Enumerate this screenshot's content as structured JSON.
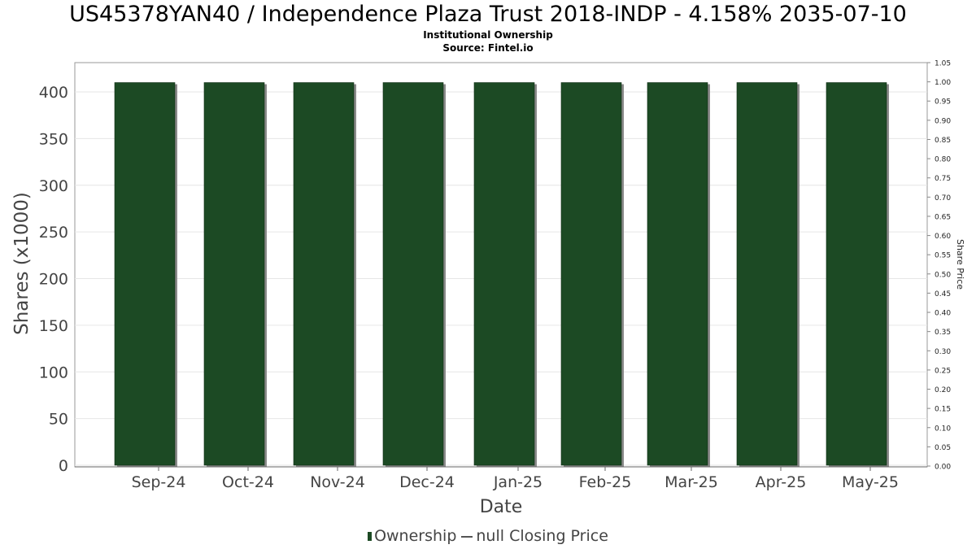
{
  "title": "US45378YAN40 / Independence Plaza Trust 2018-INDP - 4.158% 2035-07-10",
  "subtitle": "Institutional Ownership",
  "source": "Source: Fintel.io",
  "legend": {
    "ownership_label": "Ownership",
    "price_label": "null Closing Price"
  },
  "colors": {
    "bar_fill": "#1c4a24",
    "bar_shadow": "#8a8a8a",
    "grid": "#e6e6e6",
    "axis": "#999999"
  },
  "chart_data": {
    "type": "bar",
    "categories": [
      "Sep-24",
      "Oct-24",
      "Nov-24",
      "Dec-24",
      "Jan-25",
      "Feb-25",
      "Mar-25",
      "Apr-25",
      "May-25"
    ],
    "series": [
      {
        "name": "Ownership",
        "values": [
          410,
          410,
          410,
          410,
          410,
          410,
          410,
          410,
          410
        ]
      }
    ],
    "xlabel": "Date",
    "ylabel": "Shares (x1000)",
    "y2label": "Share Price",
    "ylim": [
      0,
      430
    ],
    "y2lim": [
      0,
      1.05
    ],
    "yticks": [
      0,
      50,
      100,
      150,
      200,
      250,
      300,
      350,
      400
    ],
    "y2ticks": [
      "0.00",
      "0.05",
      "0.10",
      "0.15",
      "0.20",
      "0.25",
      "0.30",
      "0.35",
      "0.40",
      "0.45",
      "0.50",
      "0.55",
      "0.60",
      "0.65",
      "0.70",
      "0.75",
      "0.80",
      "0.85",
      "0.90",
      "0.95",
      "1.00",
      "1.05"
    ],
    "grid": true,
    "legend_position": "bottom-center"
  }
}
